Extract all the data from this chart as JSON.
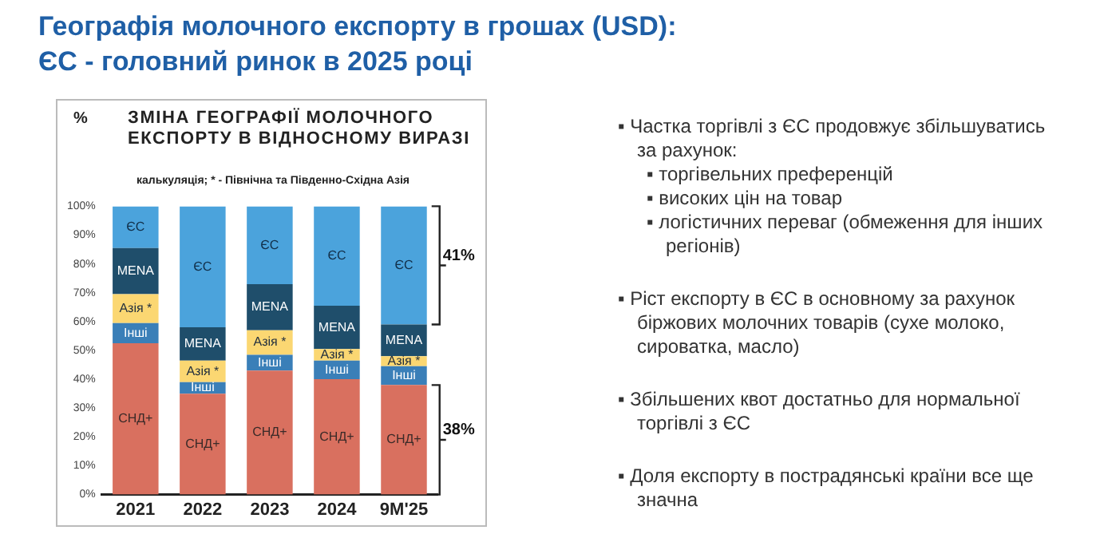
{
  "chart_data": {
    "type": "bar",
    "title": "Географія молочного експорту в грошах (USD):\nЄС - головний ринок в 2025 році",
    "subtitle": "ЗМІНА ГЕОГРАФІЇ МОЛОЧНОГО ЕКСПОРТУ В ВІДНОСНОМУ ВИРАЗІ",
    "ylabel": "%",
    "categories": [
      "2021",
      "2022",
      "2023",
      "2024",
      "9M'25"
    ],
    "series": [
      {
        "name": "СНД+",
        "color": "#d9705f",
        "values": [
          52.5,
          35,
          43,
          40,
          38
        ]
      },
      {
        "name": "Інші",
        "color": "#3a7fb8",
        "values": [
          7,
          4,
          5.5,
          6.5,
          6.5
        ]
      },
      {
        "name": "Азія *",
        "color": "#fbd772",
        "values": [
          10,
          7.5,
          8.5,
          4,
          3.5
        ]
      },
      {
        "name": "MENA",
        "color": "#1f4e6b",
        "values": [
          16,
          11.5,
          16,
          15,
          11
        ]
      },
      {
        "name": "ЄС",
        "color": "#4ba3dc",
        "values": [
          14.5,
          42,
          27,
          34.5,
          41
        ]
      }
    ],
    "stacked": true,
    "ylim": [
      0,
      100
    ],
    "yticks": [
      {
        "value": 0,
        "label": "0%"
      },
      {
        "value": 10,
        "label": "10%"
      },
      {
        "value": 20,
        "label": "20%"
      },
      {
        "value": 30,
        "label": "30%"
      },
      {
        "value": 40,
        "label": "40%"
      },
      {
        "value": 50,
        "label": "50%"
      },
      {
        "value": 60,
        "label": "60%"
      },
      {
        "value": 70,
        "label": "70%"
      },
      {
        "value": 80,
        "label": "80%"
      },
      {
        "value": 90,
        "label": "90%"
      },
      {
        "value": 100,
        "label": "100%"
      }
    ],
    "grid": false,
    "legend": false,
    "annotations": [
      "калькуляція; * - Північна та Південно-Східна Азія",
      "41%",
      "38%",
      "▪ Частка торгівлі з ЄС продовжує збільшуватись за рахунок:",
      "▪ торгівельних преференцій",
      "▪ високих цін на товар",
      "▪ логістичних переваг (обмеження для інших регіонів)",
      "▪ Ріст експорту в ЄС в основному за рахунок біржових молочних товарів (сухе молоко, сироватка, масло)",
      "▪ Збільшених квот достатньо для нормальної торгівлі з ЄС",
      "▪ Доля експорту в пострадянські країни все ще значна"
    ]
  }
}
